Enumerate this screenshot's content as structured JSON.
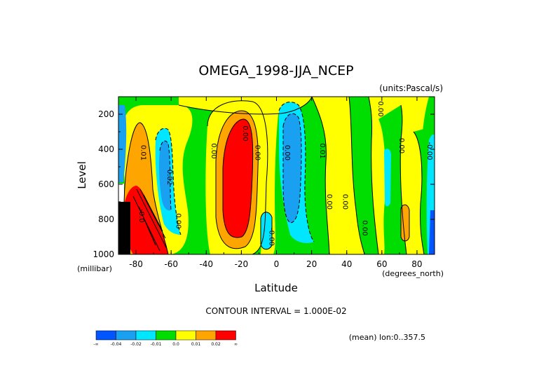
{
  "chart_data": {
    "type": "heatmap",
    "title": "OMEGA_1998-JJA_NCEP",
    "units": "(units:Pascal/s)",
    "xlabel": "Latitude",
    "xunits": "(degrees_north)",
    "ylabel": "Level",
    "yunits": "(millibar)",
    "xlim": [
      -90,
      90
    ],
    "ylim": [
      1000,
      100
    ],
    "x_ticks": [
      -80,
      -60,
      -40,
      -20,
      0,
      20,
      40,
      60,
      80
    ],
    "x_tick_labels": [
      "-80",
      "-60",
      "-40",
      "-20",
      "0",
      "20",
      "40",
      "60",
      "80"
    ],
    "y_ticks": [
      200,
      400,
      600,
      800,
      1000
    ],
    "y_tick_labels": [
      "200",
      "400",
      "600",
      "800",
      "1000"
    ],
    "contour_interval_text": "CONTOUR INTERVAL = 1.000E-02",
    "mean_text": "(mean) lon:0..357.5",
    "colorbar": {
      "colors": [
        "#0055ff",
        "#1aa0f0",
        "#00e6ff",
        "#00dd00",
        "#ffff00",
        "#ffa500",
        "#ff0000"
      ],
      "labels": [
        "-∞",
        "-0.04",
        "-0.02",
        "-0.01",
        "0.0",
        "0.01",
        "0.02",
        "∞"
      ]
    },
    "contour_labels": [
      {
        "text": "0.01",
        "lat": -77,
        "p": 420
      },
      {
        "text": "0.02",
        "lat": -62,
        "p": 560
      },
      {
        "text": "0.00",
        "lat": -57,
        "p": 810
      },
      {
        "text": "0.00",
        "lat": -37,
        "p": 410
      },
      {
        "text": "-0.0",
        "lat": -78,
        "p": 780
      },
      {
        "text": "0.00",
        "lat": -19,
        "p": 310
      },
      {
        "text": "0.00",
        "lat": -12,
        "p": 420
      },
      {
        "text": "-0.00",
        "lat": -4,
        "p": 900
      },
      {
        "text": "0.00",
        "lat": 5,
        "p": 420
      },
      {
        "text": "0.01",
        "lat": 25,
        "p": 410
      },
      {
        "text": "0.00",
        "lat": 29,
        "p": 700
      },
      {
        "text": "0.00",
        "lat": 38,
        "p": 700
      },
      {
        "text": "0.00",
        "lat": 49,
        "p": 850
      },
      {
        "text": "0.00",
        "lat": 58,
        "p": 170
      },
      {
        "text": "0.00",
        "lat": 70,
        "p": 380
      },
      {
        "text": "-0.00",
        "lat": 86,
        "p": 410
      }
    ]
  }
}
